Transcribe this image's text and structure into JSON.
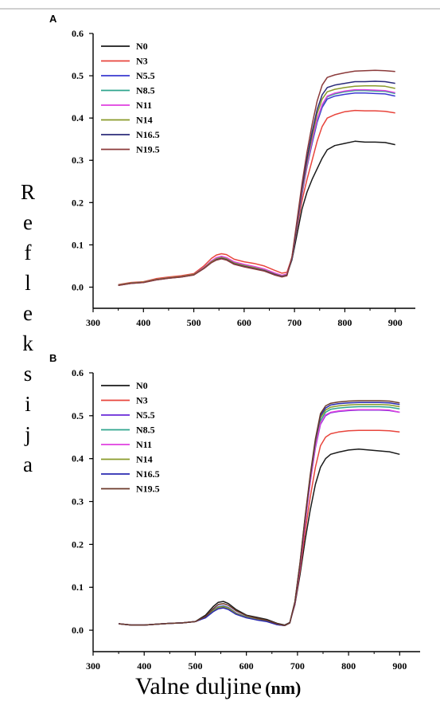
{
  "y_axis_label": "Refleksija",
  "x_axis_label_main": "Valne duljine",
  "x_axis_label_unit": "(nm)",
  "chart_data": [
    {
      "type": "line",
      "panel_label": "A",
      "xlim": [
        300,
        940
      ],
      "ylim": [
        -0.05,
        0.6
      ],
      "xticks": [
        300,
        400,
        500,
        600,
        700,
        800,
        900
      ],
      "yticks": [
        0.0,
        0.1,
        0.2,
        0.3,
        0.4,
        0.5,
        0.6
      ],
      "ytick_labels": [
        "0.0",
        "0.1",
        "0.2",
        "0.3",
        "0.4",
        "0.5",
        "0.6"
      ],
      "legend_position": "top-left",
      "x": [
        350,
        375,
        400,
        425,
        450,
        475,
        500,
        520,
        535,
        545,
        555,
        565,
        580,
        600,
        620,
        640,
        660,
        675,
        685,
        695,
        705,
        715,
        725,
        735,
        745,
        755,
        765,
        780,
        800,
        820,
        840,
        860,
        880,
        900
      ],
      "series": [
        {
          "name": "N0",
          "color": "#1a1a1a",
          "values": [
            0.005,
            0.01,
            0.012,
            0.018,
            0.022,
            0.025,
            0.03,
            0.045,
            0.06,
            0.066,
            0.068,
            0.065,
            0.055,
            0.05,
            0.045,
            0.04,
            0.032,
            0.027,
            0.03,
            0.065,
            0.125,
            0.185,
            0.225,
            0.255,
            0.28,
            0.305,
            0.325,
            0.335,
            0.34,
            0.345,
            0.343,
            0.343,
            0.342,
            0.337
          ]
        },
        {
          "name": "N3",
          "color": "#e8453c",
          "values": [
            0.006,
            0.011,
            0.013,
            0.02,
            0.024,
            0.027,
            0.032,
            0.05,
            0.068,
            0.076,
            0.079,
            0.077,
            0.066,
            0.06,
            0.056,
            0.05,
            0.04,
            0.033,
            0.035,
            0.07,
            0.14,
            0.205,
            0.255,
            0.3,
            0.345,
            0.38,
            0.4,
            0.408,
            0.415,
            0.418,
            0.417,
            0.417,
            0.416,
            0.412
          ]
        },
        {
          "name": "N5.5",
          "color": "#3a3ad0",
          "values": [
            0.005,
            0.01,
            0.012,
            0.018,
            0.022,
            0.025,
            0.03,
            0.046,
            0.062,
            0.069,
            0.072,
            0.069,
            0.059,
            0.053,
            0.048,
            0.042,
            0.033,
            0.027,
            0.03,
            0.068,
            0.145,
            0.22,
            0.285,
            0.34,
            0.39,
            0.425,
            0.445,
            0.452,
            0.456,
            0.459,
            0.459,
            0.458,
            0.457,
            0.452
          ]
        },
        {
          "name": "N8.5",
          "color": "#2fa58e",
          "values": [
            0.005,
            0.01,
            0.012,
            0.018,
            0.022,
            0.025,
            0.03,
            0.046,
            0.061,
            0.068,
            0.071,
            0.068,
            0.058,
            0.052,
            0.047,
            0.041,
            0.032,
            0.026,
            0.029,
            0.068,
            0.145,
            0.222,
            0.288,
            0.345,
            0.395,
            0.43,
            0.45,
            0.457,
            0.462,
            0.465,
            0.465,
            0.464,
            0.463,
            0.458
          ]
        },
        {
          "name": "N11",
          "color": "#e040e0",
          "values": [
            0.005,
            0.01,
            0.012,
            0.018,
            0.022,
            0.025,
            0.03,
            0.046,
            0.062,
            0.07,
            0.073,
            0.07,
            0.06,
            0.054,
            0.049,
            0.043,
            0.034,
            0.028,
            0.031,
            0.069,
            0.147,
            0.224,
            0.29,
            0.347,
            0.397,
            0.432,
            0.452,
            0.459,
            0.464,
            0.467,
            0.467,
            0.466,
            0.465,
            0.46
          ]
        },
        {
          "name": "N14",
          "color": "#8a9a2a",
          "values": [
            0.005,
            0.01,
            0.012,
            0.018,
            0.022,
            0.025,
            0.03,
            0.045,
            0.06,
            0.067,
            0.07,
            0.067,
            0.057,
            0.051,
            0.046,
            0.04,
            0.031,
            0.026,
            0.029,
            0.07,
            0.15,
            0.23,
            0.298,
            0.357,
            0.41,
            0.445,
            0.462,
            0.468,
            0.472,
            0.475,
            0.476,
            0.476,
            0.475,
            0.47
          ]
        },
        {
          "name": "N16.5",
          "color": "#2b2b7a",
          "values": [
            0.004,
            0.009,
            0.011,
            0.017,
            0.021,
            0.024,
            0.029,
            0.044,
            0.058,
            0.065,
            0.068,
            0.065,
            0.055,
            0.049,
            0.044,
            0.039,
            0.03,
            0.025,
            0.028,
            0.07,
            0.152,
            0.235,
            0.305,
            0.367,
            0.42,
            0.455,
            0.472,
            0.478,
            0.482,
            0.486,
            0.486,
            0.487,
            0.486,
            0.482
          ]
        },
        {
          "name": "N19.5",
          "color": "#8b3a3a",
          "values": [
            0.004,
            0.009,
            0.011,
            0.017,
            0.021,
            0.024,
            0.029,
            0.044,
            0.058,
            0.064,
            0.067,
            0.064,
            0.054,
            0.048,
            0.043,
            0.038,
            0.029,
            0.024,
            0.027,
            0.072,
            0.158,
            0.245,
            0.32,
            0.385,
            0.44,
            0.478,
            0.496,
            0.502,
            0.507,
            0.511,
            0.512,
            0.513,
            0.512,
            0.51
          ]
        }
      ]
    },
    {
      "type": "line",
      "panel_label": "B",
      "xlim": [
        300,
        940
      ],
      "ylim": [
        -0.05,
        0.6
      ],
      "xticks": [
        300,
        400,
        500,
        600,
        700,
        800,
        900
      ],
      "yticks": [
        0.0,
        0.1,
        0.2,
        0.3,
        0.4,
        0.5,
        0.6
      ],
      "ytick_labels": [
        "0.0",
        "0.1",
        "0.2",
        "0.3",
        "0.4",
        "0.5",
        "0.6"
      ],
      "legend_position": "top-left",
      "x": [
        350,
        375,
        400,
        425,
        450,
        475,
        500,
        520,
        535,
        545,
        555,
        565,
        580,
        600,
        620,
        640,
        660,
        675,
        685,
        695,
        705,
        715,
        725,
        735,
        745,
        755,
        765,
        780,
        800,
        820,
        840,
        860,
        880,
        900
      ],
      "series": [
        {
          "name": "N0",
          "color": "#1a1a1a",
          "values": [
            0.015,
            0.012,
            0.012,
            0.014,
            0.016,
            0.017,
            0.02,
            0.035,
            0.055,
            0.065,
            0.067,
            0.062,
            0.048,
            0.035,
            0.03,
            0.025,
            0.016,
            0.012,
            0.018,
            0.06,
            0.13,
            0.21,
            0.28,
            0.34,
            0.38,
            0.4,
            0.41,
            0.415,
            0.42,
            0.422,
            0.42,
            0.418,
            0.416,
            0.41
          ]
        },
        {
          "name": "N3",
          "color": "#e8453c",
          "values": [
            0.015,
            0.012,
            0.012,
            0.014,
            0.016,
            0.017,
            0.02,
            0.03,
            0.045,
            0.052,
            0.054,
            0.05,
            0.038,
            0.03,
            0.025,
            0.021,
            0.014,
            0.011,
            0.017,
            0.062,
            0.14,
            0.23,
            0.31,
            0.38,
            0.43,
            0.45,
            0.458,
            0.462,
            0.465,
            0.466,
            0.466,
            0.466,
            0.465,
            0.462
          ]
        },
        {
          "name": "N5.5",
          "color": "#6a2ad8",
          "values": [
            0.015,
            0.012,
            0.012,
            0.014,
            0.016,
            0.017,
            0.02,
            0.031,
            0.047,
            0.055,
            0.057,
            0.053,
            0.04,
            0.031,
            0.026,
            0.022,
            0.014,
            0.011,
            0.017,
            0.064,
            0.15,
            0.25,
            0.345,
            0.425,
            0.48,
            0.5,
            0.507,
            0.51,
            0.512,
            0.513,
            0.513,
            0.513,
            0.512,
            0.508
          ]
        },
        {
          "name": "N8.5",
          "color": "#2fa58e",
          "values": [
            0.015,
            0.012,
            0.012,
            0.014,
            0.016,
            0.017,
            0.02,
            0.031,
            0.046,
            0.054,
            0.056,
            0.052,
            0.039,
            0.031,
            0.026,
            0.022,
            0.014,
            0.011,
            0.017,
            0.065,
            0.152,
            0.255,
            0.35,
            0.432,
            0.488,
            0.508,
            0.515,
            0.518,
            0.52,
            0.521,
            0.521,
            0.521,
            0.52,
            0.516
          ]
        },
        {
          "name": "N11",
          "color": "#e040e0",
          "values": [
            0.015,
            0.012,
            0.012,
            0.014,
            0.016,
            0.017,
            0.02,
            0.03,
            0.044,
            0.052,
            0.054,
            0.05,
            0.038,
            0.03,
            0.025,
            0.021,
            0.013,
            0.011,
            0.017,
            0.064,
            0.15,
            0.252,
            0.346,
            0.428,
            0.482,
            0.502,
            0.508,
            0.511,
            0.513,
            0.514,
            0.514,
            0.514,
            0.513,
            0.508
          ]
        },
        {
          "name": "N14",
          "color": "#8a9a2a",
          "values": [
            0.015,
            0.012,
            0.012,
            0.014,
            0.016,
            0.017,
            0.02,
            0.03,
            0.045,
            0.053,
            0.055,
            0.051,
            0.039,
            0.03,
            0.025,
            0.021,
            0.013,
            0.011,
            0.017,
            0.066,
            0.155,
            0.26,
            0.355,
            0.438,
            0.495,
            0.513,
            0.52,
            0.523,
            0.525,
            0.526,
            0.526,
            0.526,
            0.525,
            0.521
          ]
        },
        {
          "name": "N16.5",
          "color": "#2a2ab0",
          "values": [
            0.015,
            0.012,
            0.012,
            0.014,
            0.016,
            0.017,
            0.02,
            0.029,
            0.043,
            0.05,
            0.052,
            0.048,
            0.037,
            0.029,
            0.024,
            0.02,
            0.013,
            0.011,
            0.017,
            0.066,
            0.156,
            0.262,
            0.358,
            0.442,
            0.5,
            0.518,
            0.525,
            0.528,
            0.53,
            0.531,
            0.531,
            0.531,
            0.53,
            0.526
          ]
        },
        {
          "name": "N19.5",
          "color": "#6b3a2a",
          "values": [
            0.015,
            0.012,
            0.012,
            0.014,
            0.016,
            0.017,
            0.02,
            0.032,
            0.05,
            0.06,
            0.062,
            0.058,
            0.045,
            0.034,
            0.028,
            0.023,
            0.015,
            0.011,
            0.017,
            0.067,
            0.158,
            0.265,
            0.362,
            0.446,
            0.505,
            0.523,
            0.529,
            0.532,
            0.534,
            0.535,
            0.535,
            0.535,
            0.534,
            0.53
          ]
        }
      ]
    }
  ]
}
